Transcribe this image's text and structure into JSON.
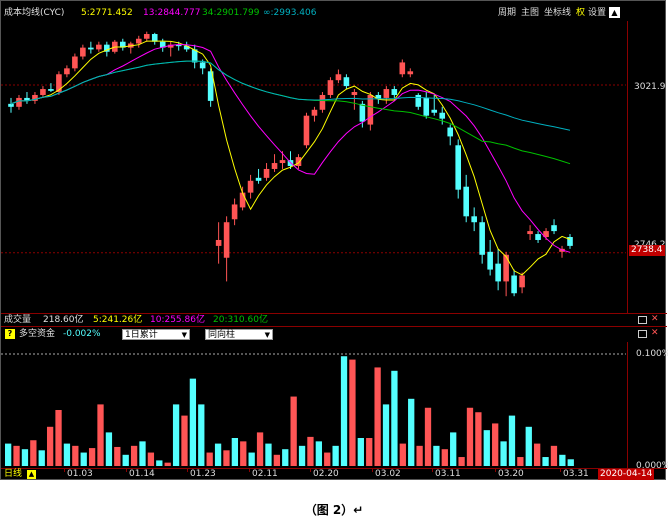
{
  "top_legend": {
    "title": "成本均线(CYC)",
    "ma5": "5:2771.452",
    "ma13": "13:2844.777",
    "ma34": "34:2901.799",
    "ma_inf": "∞:2993.406"
  },
  "toolbar": {
    "weekly": "周期",
    "main_chart": "主图",
    "coord": "坐标线",
    "fuquan": "权",
    "settings": "设置"
  },
  "price_labels": {
    "upper": "3021.9",
    "lower_hidden": "2746.2",
    "current": "2738.4"
  },
  "volume_legend": {
    "title": "成交量",
    "total": "218.60亿",
    "v5": "5:241.26亿",
    "v10": "10:255.86亿",
    "v20": "20:310.60亿"
  },
  "fund_panel": {
    "help_mark": "?",
    "title": "多空资金",
    "value": "-0.002%",
    "select1": "1日累计",
    "select2": "同向柱",
    "scale_top": "0.100%",
    "scale_bottom": "0.000%"
  },
  "x_axis": {
    "period": "日线",
    "dates": [
      "01.03",
      "01.14",
      "01.23",
      "02.11",
      "02.20",
      "03.02",
      "03.11",
      "03.20",
      "03.31"
    ],
    "current_date": "2020-04-14"
  },
  "caption": "（图 2）↵",
  "colors": {
    "up": "#ff5555",
    "down": "#54ffff",
    "ma5": "#ffff00",
    "ma13": "#ff00ff",
    "ma34": "#00c000",
    "ma_inf": "#00b0c0"
  },
  "chart_data": {
    "type": "candlestick",
    "y_reference": {
      "upper": 3021.9,
      "current": 2738.4
    },
    "candles": [
      {
        "o": 2985,
        "h": 3000,
        "l": 2975,
        "c": 2990,
        "up": false
      },
      {
        "o": 2985,
        "h": 3005,
        "l": 2980,
        "c": 3000,
        "up": true
      },
      {
        "o": 3000,
        "h": 3010,
        "l": 2990,
        "c": 2995,
        "up": false
      },
      {
        "o": 2995,
        "h": 3010,
        "l": 2990,
        "c": 3005,
        "up": true
      },
      {
        "o": 3005,
        "h": 3020,
        "l": 3000,
        "c": 3015,
        "up": true
      },
      {
        "o": 3015,
        "h": 3025,
        "l": 3010,
        "c": 3012,
        "up": false
      },
      {
        "o": 3010,
        "h": 3045,
        "l": 3005,
        "c": 3040,
        "up": true
      },
      {
        "o": 3040,
        "h": 3055,
        "l": 3035,
        "c": 3050,
        "up": true
      },
      {
        "o": 3050,
        "h": 3075,
        "l": 3045,
        "c": 3070,
        "up": true
      },
      {
        "o": 3070,
        "h": 3090,
        "l": 3065,
        "c": 3085,
        "up": true
      },
      {
        "o": 3085,
        "h": 3095,
        "l": 3075,
        "c": 3082,
        "up": false
      },
      {
        "o": 3082,
        "h": 3095,
        "l": 3078,
        "c": 3090,
        "up": true
      },
      {
        "o": 3090,
        "h": 3095,
        "l": 3070,
        "c": 3078,
        "up": false
      },
      {
        "o": 3078,
        "h": 3098,
        "l": 3075,
        "c": 3095,
        "up": true
      },
      {
        "o": 3095,
        "h": 3100,
        "l": 3080,
        "c": 3085,
        "up": false
      },
      {
        "o": 3085,
        "h": 3095,
        "l": 3075,
        "c": 3092,
        "up": true
      },
      {
        "o": 3092,
        "h": 3105,
        "l": 3085,
        "c": 3100,
        "up": true
      },
      {
        "o": 3100,
        "h": 3112,
        "l": 3095,
        "c": 3108,
        "up": true
      },
      {
        "o": 3108,
        "h": 3110,
        "l": 3090,
        "c": 3095,
        "up": false
      },
      {
        "o": 3095,
        "h": 3100,
        "l": 3078,
        "c": 3085,
        "up": false
      },
      {
        "o": 3085,
        "h": 3095,
        "l": 3070,
        "c": 3090,
        "up": true
      },
      {
        "o": 3090,
        "h": 3095,
        "l": 3080,
        "c": 3088,
        "up": false
      },
      {
        "o": 3088,
        "h": 3095,
        "l": 3078,
        "c": 3082,
        "up": false
      },
      {
        "o": 3082,
        "h": 3090,
        "l": 3050,
        "c": 3060,
        "up": false
      },
      {
        "o": 3060,
        "h": 3065,
        "l": 3040,
        "c": 3050,
        "up": false
      },
      {
        "o": 3045,
        "h": 3050,
        "l": 2985,
        "c": 2995,
        "up": false
      },
      {
        "o": 2760,
        "h": 2790,
        "l": 2720,
        "c": 2750,
        "up": true
      },
      {
        "o": 2730,
        "h": 2800,
        "l": 2690,
        "c": 2790,
        "up": true
      },
      {
        "o": 2795,
        "h": 2830,
        "l": 2785,
        "c": 2820,
        "up": true
      },
      {
        "o": 2815,
        "h": 2850,
        "l": 2810,
        "c": 2840,
        "up": true
      },
      {
        "o": 2840,
        "h": 2870,
        "l": 2830,
        "c": 2860,
        "up": true
      },
      {
        "o": 2860,
        "h": 2880,
        "l": 2855,
        "c": 2865,
        "up": false
      },
      {
        "o": 2865,
        "h": 2890,
        "l": 2860,
        "c": 2880,
        "up": true
      },
      {
        "o": 2880,
        "h": 2905,
        "l": 2875,
        "c": 2890,
        "up": true
      },
      {
        "o": 2890,
        "h": 2910,
        "l": 2880,
        "c": 2895,
        "up": true
      },
      {
        "o": 2895,
        "h": 2910,
        "l": 2880,
        "c": 2885,
        "up": false
      },
      {
        "o": 2885,
        "h": 2905,
        "l": 2880,
        "c": 2900,
        "up": true
      },
      {
        "o": 2920,
        "h": 2975,
        "l": 2915,
        "c": 2970,
        "up": true
      },
      {
        "o": 2970,
        "h": 2985,
        "l": 2960,
        "c": 2980,
        "up": true
      },
      {
        "o": 2980,
        "h": 3010,
        "l": 2975,
        "c": 3005,
        "up": true
      },
      {
        "o": 3005,
        "h": 3035,
        "l": 3000,
        "c": 3030,
        "up": true
      },
      {
        "o": 3030,
        "h": 3048,
        "l": 3025,
        "c": 3040,
        "up": true
      },
      {
        "o": 3035,
        "h": 3040,
        "l": 3015,
        "c": 3020,
        "up": false
      },
      {
        "o": 3010,
        "h": 3015,
        "l": 2980,
        "c": 3005,
        "up": true
      },
      {
        "o": 2990,
        "h": 2995,
        "l": 2950,
        "c": 2960,
        "up": false
      },
      {
        "o": 2955,
        "h": 3010,
        "l": 2945,
        "c": 3005,
        "up": true
      },
      {
        "o": 3005,
        "h": 3010,
        "l": 2990,
        "c": 2998,
        "up": false
      },
      {
        "o": 3000,
        "h": 3020,
        "l": 2990,
        "c": 3015,
        "up": true
      },
      {
        "o": 3015,
        "h": 3020,
        "l": 3000,
        "c": 3005,
        "up": false
      },
      {
        "o": 3040,
        "h": 3065,
        "l": 3035,
        "c": 3060,
        "up": true
      },
      {
        "o": 3040,
        "h": 3050,
        "l": 3035,
        "c": 3045,
        "up": true
      },
      {
        "o": 3005,
        "h": 3008,
        "l": 2980,
        "c": 2985,
        "up": false
      },
      {
        "o": 3000,
        "h": 3010,
        "l": 2965,
        "c": 2970,
        "up": false
      },
      {
        "o": 2980,
        "h": 3005,
        "l": 2970,
        "c": 2975,
        "up": false
      },
      {
        "o": 2975,
        "h": 2985,
        "l": 2955,
        "c": 2965,
        "up": false
      },
      {
        "o": 2950,
        "h": 2955,
        "l": 2920,
        "c": 2935,
        "up": false
      },
      {
        "o": 2920,
        "h": 2930,
        "l": 2830,
        "c": 2845,
        "up": false
      },
      {
        "o": 2850,
        "h": 2870,
        "l": 2790,
        "c": 2800,
        "up": false
      },
      {
        "o": 2800,
        "h": 2815,
        "l": 2775,
        "c": 2790,
        "up": false
      },
      {
        "o": 2790,
        "h": 2800,
        "l": 2720,
        "c": 2735,
        "up": false
      },
      {
        "o": 2740,
        "h": 2760,
        "l": 2700,
        "c": 2710,
        "up": false
      },
      {
        "o": 2720,
        "h": 2745,
        "l": 2675,
        "c": 2690,
        "up": false
      },
      {
        "o": 2690,
        "h": 2740,
        "l": 2665,
        "c": 2735,
        "up": true
      },
      {
        "o": 2700,
        "h": 2710,
        "l": 2665,
        "c": 2670,
        "up": false
      },
      {
        "o": 2680,
        "h": 2705,
        "l": 2670,
        "c": 2700,
        "up": true
      },
      {
        "o": 2770,
        "h": 2785,
        "l": 2760,
        "c": 2775,
        "up": true
      },
      {
        "o": 2770,
        "h": 2775,
        "l": 2755,
        "c": 2760,
        "up": false
      },
      {
        "o": 2765,
        "h": 2780,
        "l": 2760,
        "c": 2775,
        "up": true
      },
      {
        "o": 2785,
        "h": 2795,
        "l": 2770,
        "c": 2775,
        "up": false
      },
      {
        "o": 2740,
        "h": 2750,
        "l": 2730,
        "c": 2745,
        "up": true
      },
      {
        "o": 2765,
        "h": 2770,
        "l": 2745,
        "c": 2750,
        "up": false
      }
    ],
    "volume_bars": [
      {
        "v": 0.2,
        "up": false
      },
      {
        "v": 0.18,
        "up": true
      },
      {
        "v": 0.15,
        "up": false
      },
      {
        "v": 0.23,
        "up": true
      },
      {
        "v": 0.14,
        "up": false
      },
      {
        "v": 0.35,
        "up": true
      },
      {
        "v": 0.5,
        "up": true
      },
      {
        "v": 0.2,
        "up": false
      },
      {
        "v": 0.18,
        "up": true
      },
      {
        "v": 0.12,
        "up": false
      },
      {
        "v": 0.16,
        "up": true
      },
      {
        "v": 0.55,
        "up": true
      },
      {
        "v": 0.3,
        "up": false
      },
      {
        "v": 0.17,
        "up": true
      },
      {
        "v": 0.1,
        "up": false
      },
      {
        "v": 0.18,
        "up": true
      },
      {
        "v": 0.22,
        "up": false
      },
      {
        "v": 0.12,
        "up": true
      },
      {
        "v": 0.05,
        "up": false
      },
      {
        "v": 0.03,
        "up": true
      },
      {
        "v": 0.55,
        "up": false
      },
      {
        "v": 0.45,
        "up": true
      },
      {
        "v": 0.78,
        "up": false
      },
      {
        "v": 0.55,
        "up": false
      },
      {
        "v": 0.12,
        "up": true
      },
      {
        "v": 0.2,
        "up": false
      },
      {
        "v": 0.14,
        "up": true
      },
      {
        "v": 0.25,
        "up": false
      },
      {
        "v": 0.22,
        "up": true
      },
      {
        "v": 0.12,
        "up": false
      },
      {
        "v": 0.3,
        "up": true
      },
      {
        "v": 0.2,
        "up": false
      },
      {
        "v": 0.1,
        "up": true
      },
      {
        "v": 0.15,
        "up": false
      },
      {
        "v": 0.62,
        "up": true
      },
      {
        "v": 0.18,
        "up": false
      },
      {
        "v": 0.26,
        "up": true
      },
      {
        "v": 0.22,
        "up": false
      },
      {
        "v": 0.12,
        "up": true
      },
      {
        "v": 0.18,
        "up": false
      },
      {
        "v": 0.98,
        "up": false
      },
      {
        "v": 0.95,
        "up": true
      },
      {
        "v": 0.25,
        "up": false
      },
      {
        "v": 0.25,
        "up": true
      },
      {
        "v": 0.88,
        "up": true
      },
      {
        "v": 0.55,
        "up": false
      },
      {
        "v": 0.85,
        "up": false
      },
      {
        "v": 0.2,
        "up": true
      },
      {
        "v": 0.6,
        "up": false
      },
      {
        "v": 0.18,
        "up": true
      },
      {
        "v": 0.52,
        "up": true
      },
      {
        "v": 0.18,
        "up": false
      },
      {
        "v": 0.15,
        "up": true
      },
      {
        "v": 0.3,
        "up": false
      },
      {
        "v": 0.08,
        "up": true
      },
      {
        "v": 0.52,
        "up": true
      },
      {
        "v": 0.48,
        "up": true
      },
      {
        "v": 0.32,
        "up": false
      },
      {
        "v": 0.38,
        "up": true
      },
      {
        "v": 0.22,
        "up": false
      },
      {
        "v": 0.45,
        "up": false
      },
      {
        "v": 0.08,
        "up": true
      },
      {
        "v": 0.35,
        "up": false
      },
      {
        "v": 0.2,
        "up": true
      },
      {
        "v": 0.08,
        "up": false
      },
      {
        "v": 0.18,
        "up": true
      },
      {
        "v": 0.1,
        "up": false
      },
      {
        "v": 0.06,
        "up": false
      }
    ]
  }
}
